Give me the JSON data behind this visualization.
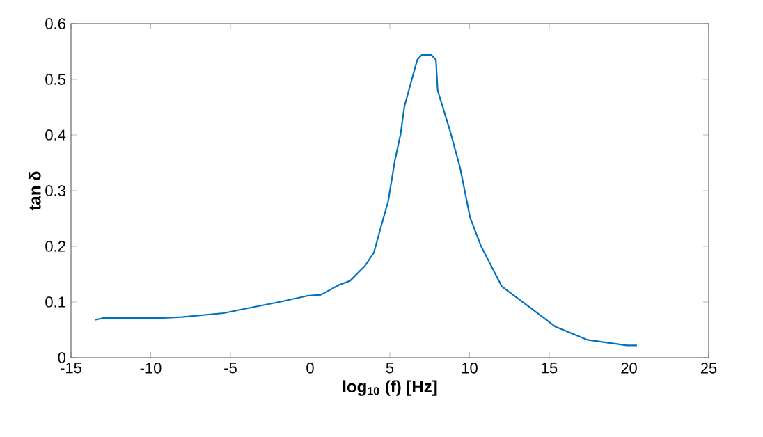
{
  "chart_data": {
    "type": "line",
    "xlabel": "log$_{10}$ (f) [Hz]",
    "ylabel": "tan δ",
    "xlim": [
      -15,
      25
    ],
    "ylim": [
      0,
      0.6
    ],
    "xticks": [
      -15,
      -10,
      -5,
      0,
      5,
      10,
      15,
      20,
      25
    ],
    "yticks": [
      0,
      0.1,
      0.2,
      0.3,
      0.4,
      0.5,
      0.6
    ],
    "grid": false,
    "line_style": "solid",
    "marker": "none",
    "series": [
      {
        "color": "#0072bd",
        "x": [
          -13.5,
          -13.0,
          -9.2,
          -8.05,
          -5.44,
          -3.7,
          -1.95,
          -0.2,
          0.67,
          1.83,
          2.5,
          3.44,
          4.0,
          4.45,
          4.89,
          5.32,
          5.67,
          5.91,
          6.34,
          6.72,
          7.01,
          7.59,
          7.89,
          8.0,
          8.76,
          9.4,
          10.04,
          10.71,
          12.02,
          13.47,
          14.63,
          15.36,
          17.4,
          19.87,
          20.5
        ],
        "values": [
          0.068,
          0.071,
          0.0715,
          0.073,
          0.08,
          0.09,
          0.1,
          0.111,
          0.113,
          0.131,
          0.138,
          0.165,
          0.189,
          0.236,
          0.28,
          0.355,
          0.401,
          0.451,
          0.496,
          0.535,
          0.544,
          0.544,
          0.535,
          0.48,
          0.409,
          0.342,
          0.251,
          0.201,
          0.128,
          0.097,
          0.072,
          0.056,
          0.032,
          0.022,
          0.022
        ]
      }
    ]
  }
}
